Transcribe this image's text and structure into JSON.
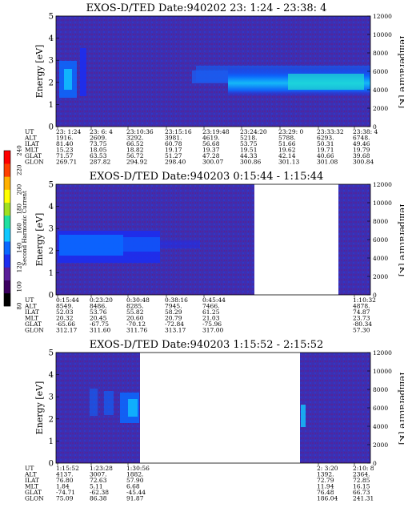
{
  "colorbar": {
    "label": "Second Harmonic Current",
    "ticks": [
      "80",
      "100",
      "120",
      "140",
      "160",
      "180",
      "200",
      "220",
      "240"
    ],
    "colors": [
      "#000000",
      "#3c0060",
      "#5a1e9a",
      "#1c2ef0",
      "#0a68ff",
      "#10c8ff",
      "#20e0a0",
      "#a0e020",
      "#ffff00",
      "#ffb000",
      "#ff4000",
      "#ff0000"
    ]
  },
  "panels": [
    {
      "title": "EXOS-D/TED   Date:940202  23: 1:24 - 23:38: 4",
      "ylabel_left": "Energy [eV]",
      "ylabel_right": "Temperature [K]",
      "y_ticks": [
        "0",
        "1",
        "2",
        "3",
        "4",
        "5"
      ],
      "t_ticks": [
        "0",
        "2000",
        "4000",
        "6000",
        "8000",
        "10000",
        "12000"
      ],
      "events": {
        "row_labels": [
          "UT",
          "ALT",
          "ILAT",
          "MLT",
          "GLAT",
          "GLON"
        ],
        "columns": [
          [
            "23: 1:24",
            "1916.",
            "81.40",
            "15.23",
            "71.57",
            "269.71"
          ],
          [
            "23: 6: 4",
            "2609.",
            "73.75",
            "18.05",
            "63.53",
            "287.82"
          ],
          [
            "23:10:36",
            "3292.",
            "66.52",
            "18.82",
            "56.72",
            "294.92"
          ],
          [
            "23:15:16",
            "3981.",
            "60.78",
            "19.17",
            "51.27",
            "298.40"
          ],
          [
            "23:19:48",
            "4619.",
            "56.68",
            "19.37",
            "47.28",
            "300.07"
          ],
          [
            "23:24:20",
            "5218.",
            "53.75",
            "19.51",
            "44.33",
            "300.86"
          ],
          [
            "23:29: 0",
            "5788.",
            "51.66",
            "19.62",
            "42.14",
            "301.13"
          ],
          [
            "23:33:32",
            "6293.",
            "50.31",
            "19.71",
            "40.66",
            "301.08"
          ],
          [
            "23:38: 4",
            "6748.",
            "49.46",
            "19.79",
            "39.68",
            "300.84"
          ]
        ]
      }
    },
    {
      "title": "EXOS-D/TED   Date:940203   0:15:44 - 1:15:44",
      "ylabel_left": "Energy [eV]",
      "ylabel_right": "Temperature [K]",
      "y_ticks": [
        "0",
        "1",
        "2",
        "3",
        "4",
        "5"
      ],
      "t_ticks": [
        "0",
        "2000",
        "4000",
        "6000",
        "8000",
        "10000",
        "12000"
      ],
      "events": {
        "row_labels": [
          "UT",
          "ALT",
          "ILAT",
          "MLT",
          "GLAT",
          "GLON"
        ],
        "columns": [
          [
            "0:15:44",
            "8549.",
            "52.03",
            "20.32",
            "-65.66",
            "312.17"
          ],
          [
            "0:23:20",
            "8486.",
            "53.76",
            "20.45",
            "-67.75",
            "311.60"
          ],
          [
            "0:30:48",
            "8285.",
            "55.82",
            "20.60",
            "-70.12",
            "311.76"
          ],
          [
            "0:38:16",
            "7945.",
            "58.29",
            "20.79",
            "-72.84",
            "313.17"
          ],
          [
            "0:45:44",
            "7466.",
            "61.25",
            "21.03",
            "-75.96",
            "317.00"
          ],
          [
            "",
            "",
            "",
            "",
            "",
            ""
          ],
          [
            "",
            "",
            "",
            "",
            "",
            ""
          ],
          [
            "",
            "",
            "",
            "",
            "",
            ""
          ],
          [
            "1:10:32",
            "4878.",
            "74.87",
            "23.73",
            "-80.34",
            "57.30"
          ]
        ]
      }
    },
    {
      "title": "EXOS-D/TED   Date:940203   1:15:52 - 2:15:52",
      "ylabel_left": "Energy [eV]",
      "ylabel_right": "Temperature [K]",
      "y_ticks": [
        "0",
        "1",
        "2",
        "3",
        "4",
        "5"
      ],
      "t_ticks": [
        "0",
        "2000",
        "4000",
        "6000",
        "8000",
        "10000",
        "12000"
      ],
      "events": {
        "row_labels": [
          "UT",
          "ALT",
          "ILAT",
          "MLT",
          "GLAT",
          "GLON"
        ],
        "columns": [
          [
            "1:15:52",
            "4137.",
            "76.80",
            "1.84",
            "-74.71",
            "75.09"
          ],
          [
            "1:23:28",
            "3007.",
            "72.63",
            "5.11",
            "-62.38",
            "86.38"
          ],
          [
            "1:30:56",
            "1882.",
            "57.90",
            "6.68",
            "-45.44",
            "91.87"
          ],
          [
            "",
            "",
            "",
            "",
            "",
            ""
          ],
          [
            "",
            "",
            "",
            "",
            "",
            ""
          ],
          [
            "",
            "",
            "",
            "",
            "",
            ""
          ],
          [
            "",
            "",
            "",
            "",
            "",
            ""
          ],
          [
            "2: 3:20",
            "1392.",
            "72.79",
            "11.94",
            "76.48",
            "186.04"
          ],
          [
            "2:10: 8",
            "2364.",
            "72.85",
            "16.15",
            "66.73",
            "241.31"
          ]
        ]
      }
    }
  ],
  "chart_data": [
    {
      "type": "heatmap",
      "title": "EXOS-D/TED   Date:940202  23: 1:24 - 23:38: 4",
      "ylabel": "Energy [eV]",
      "y2label": "Temperature [K]",
      "ylim": [
        0,
        5
      ],
      "y2lim": [
        0,
        12000
      ],
      "x_ticks": [
        "23: 1:24",
        "23: 6: 4",
        "23:10:36",
        "23:15:16",
        "23:19:48",
        "23:24:20",
        "23:29: 0",
        "23:33:32",
        "23:38: 4"
      ],
      "data_gaps": [],
      "colorbar_ticks": [
        80,
        100,
        120,
        140,
        160,
        180,
        200,
        220,
        240
      ]
    },
    {
      "type": "heatmap",
      "title": "EXOS-D/TED   Date:940203   0:15:44 - 1:15:44",
      "ylabel": "Energy [eV]",
      "y2label": "Temperature [K]",
      "ylim": [
        0,
        5
      ],
      "y2lim": [
        0,
        12000
      ],
      "x_ticks": [
        "0:15:44",
        "0:23:20",
        "0:30:48",
        "0:38:16",
        "0:45:44",
        "1:10:32"
      ],
      "data_gaps": [
        [
          "0:53",
          "1:08"
        ]
      ],
      "colorbar_ticks": [
        80,
        100,
        120,
        140,
        160,
        180,
        200,
        220,
        240
      ]
    },
    {
      "type": "heatmap",
      "title": "EXOS-D/TED   Date:940203   1:15:52 - 2:15:52",
      "ylabel": "Energy [eV]",
      "y2label": "Temperature [K]",
      "ylim": [
        0,
        5
      ],
      "y2lim": [
        0,
        12000
      ],
      "x_ticks": [
        "1:15:52",
        "1:23:28",
        "1:30:56",
        "2: 3:20",
        "2:10: 8"
      ],
      "data_gaps": [
        [
          "1:31",
          "2:00"
        ]
      ],
      "colorbar_ticks": [
        80,
        100,
        120,
        140,
        160,
        180,
        200,
        220,
        240
      ]
    }
  ]
}
